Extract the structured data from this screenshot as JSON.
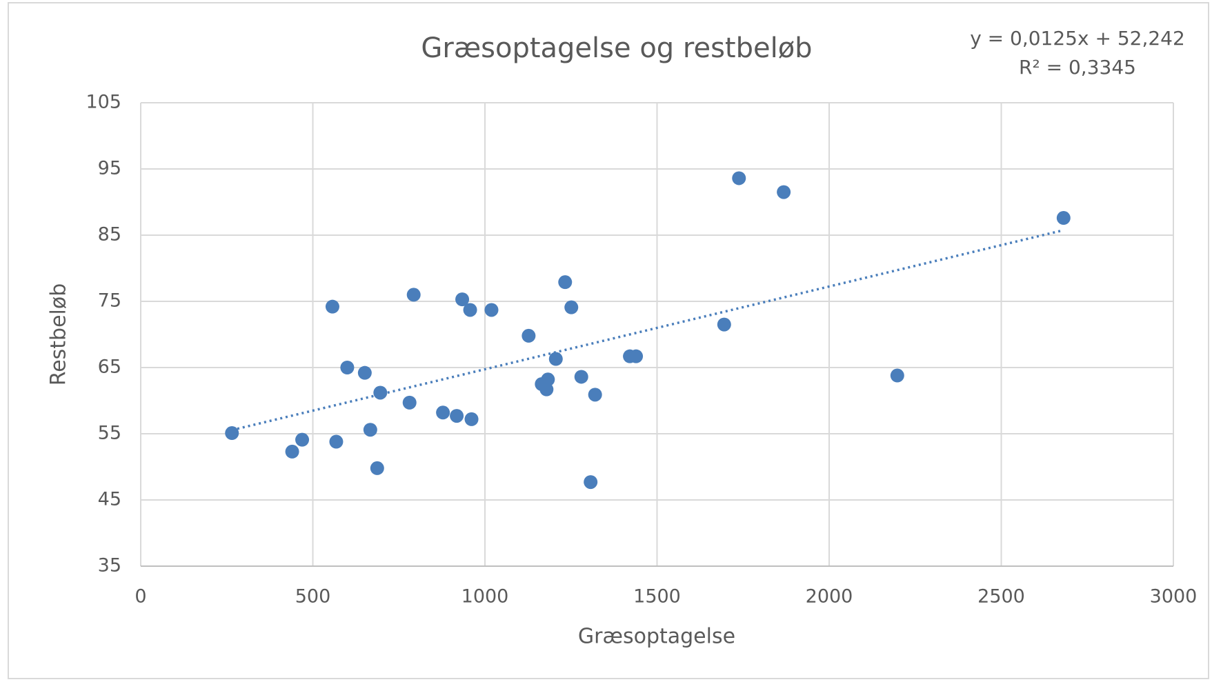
{
  "chart_data": {
    "type": "scatter",
    "title": "Græsoptagelse og restbeløb",
    "x_label": "Græsoptagelse",
    "y_label": "Restbeløb",
    "equation": "y = 0,0125x + 52,242",
    "r_squared": "R² = 0,3345",
    "trendline": {
      "slope": 0.0125,
      "intercept": 52.242,
      "style": "dotted"
    },
    "color": "#4a7ebb",
    "grid": true,
    "x": [
      265,
      440,
      469,
      557,
      568,
      600,
      651,
      667,
      687,
      696,
      781,
      793,
      878,
      918,
      934,
      957,
      961,
      1019,
      1127,
      1165,
      1179,
      1183,
      1206,
      1233,
      1251,
      1280,
      1307,
      1320,
      1421,
      1439,
      1695,
      1738,
      1868,
      2198,
      2681
    ],
    "values": [
      55.1,
      52.3,
      54.1,
      74.2,
      53.8,
      65.0,
      64.2,
      55.6,
      49.8,
      61.2,
      59.7,
      76.0,
      58.2,
      57.7,
      75.3,
      73.7,
      57.2,
      73.7,
      69.8,
      62.5,
      61.7,
      63.2,
      66.3,
      77.9,
      74.1,
      63.6,
      47.7,
      60.9,
      66.7,
      66.7,
      71.5,
      93.6,
      91.5,
      63.8,
      87.6
    ],
    "xlim": [
      0,
      3000
    ],
    "xticks": [
      0,
      500,
      1000,
      1500,
      2000,
      2500,
      3000
    ],
    "ylim": [
      35,
      105
    ],
    "yticks": [
      35,
      45,
      55,
      65,
      75,
      85,
      95,
      105
    ]
  }
}
